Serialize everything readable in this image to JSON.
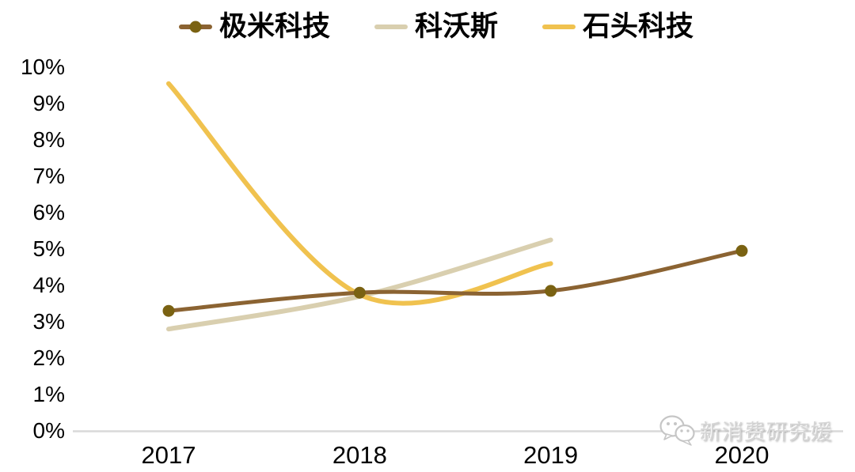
{
  "chart_data": {
    "type": "line",
    "title": "",
    "xlabel": "",
    "ylabel": "",
    "x_categories": [
      "2017",
      "2018",
      "2019",
      "2020"
    ],
    "series": [
      {
        "name": "极米科技",
        "color": "#8B6332",
        "marker": "circle",
        "marker_color": "#7A6212",
        "values": [
          3.3,
          3.8,
          3.85,
          4.95
        ]
      },
      {
        "name": "科沃斯",
        "color": "#D9CFAF",
        "marker": "none",
        "marker_color": null,
        "values": [
          2.8,
          3.7,
          5.25
        ]
      },
      {
        "name": "石头科技",
        "color": "#F0C24F",
        "marker": "none",
        "marker_color": null,
        "values": [
          9.55,
          3.75,
          4.6
        ]
      }
    ],
    "ylim": [
      0,
      10
    ],
    "yticks": [
      "0%",
      "1%",
      "2%",
      "3%",
      "4%",
      "5%",
      "6%",
      "7%",
      "8%",
      "9%",
      "10%"
    ],
    "grid": false,
    "legend_position": "top",
    "axis_line_color": "#D9D9D9"
  },
  "watermark": {
    "text": "新消费研究媛",
    "icon": "wechat-chat-bubbles-icon",
    "color": "#C9C9C9"
  }
}
